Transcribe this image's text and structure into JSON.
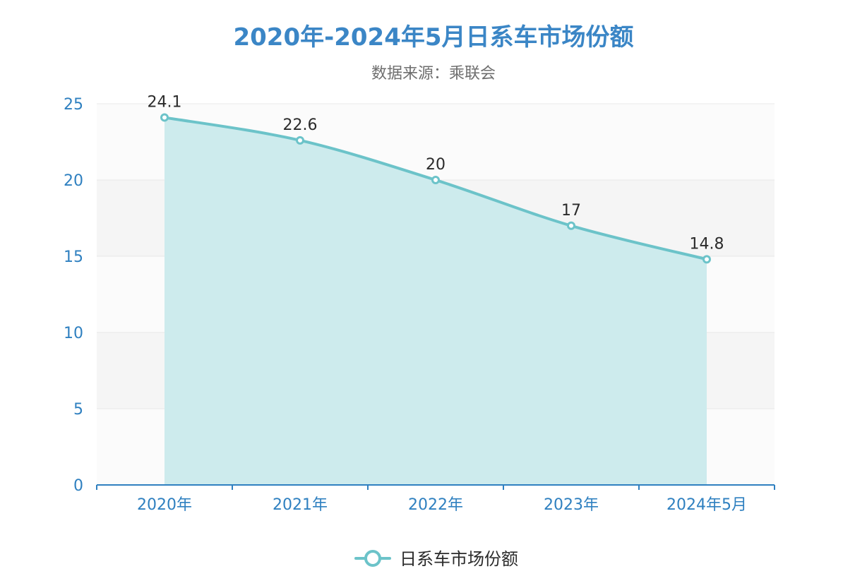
{
  "chart_data": {
    "type": "area",
    "title": "2020年-2024年5月日系车市场份额",
    "subtitle": "数据来源：乘联会",
    "categories": [
      "2020年",
      "2021年",
      "2022年",
      "2023年",
      "2024年5月"
    ],
    "series": [
      {
        "name": "日系车市场份额",
        "values": [
          24.1,
          22.6,
          20,
          17,
          14.8
        ],
        "color": "#6cc3c9",
        "area_color": "#cdebed"
      }
    ],
    "data_labels": [
      "24.1",
      "22.6",
      "20",
      "17",
      "14.8"
    ],
    "ylim": [
      0,
      25
    ],
    "y_ticks": [
      "0",
      "5",
      "10",
      "15",
      "20",
      "25"
    ],
    "xlabel": "",
    "ylabel": "",
    "grid": true,
    "legend_position": "bottom-center",
    "colors": {
      "title": "#3b86c6",
      "axis": "#2f80c0",
      "band_light": "#fbfbfb",
      "band_dark": "#f5f5f5"
    }
  }
}
